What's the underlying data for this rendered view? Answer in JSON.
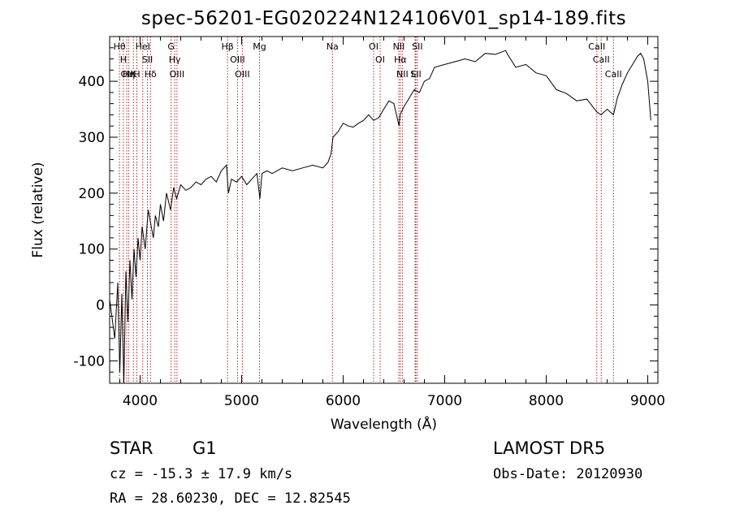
{
  "header": {
    "title": "spec-56201-EG020224N124106V01_sp14-189.fits"
  },
  "footer": {
    "object_class": "STAR",
    "subclass": "G1",
    "survey": "LAMOST DR5",
    "cz": "cz = -15.3 ± 17.9 km/s",
    "obs_date": "Obs-Date: 20120930",
    "radec": "RA =  28.60230, DEC =  12.82545"
  },
  "chart_data": {
    "type": "line",
    "title": "spec-56201-EG020224N124106V01_sp14-189.fits",
    "xlabel": "Wavelength (Å)",
    "ylabel": "Flux (relative)",
    "xlim": [
      3700,
      9100
    ],
    "ylim": [
      -140,
      480
    ],
    "xticks": [
      4000,
      5000,
      6000,
      7000,
      8000,
      9000
    ],
    "yticks": [
      -100,
      0,
      100,
      200,
      300,
      400
    ],
    "grid": false,
    "line_color": "#000000",
    "marker_color": "#b22222",
    "series": [
      {
        "x": [
          3700,
          3750,
          3780,
          3800,
          3820,
          3840,
          3860,
          3880,
          3900,
          3920,
          3940,
          3960,
          3980,
          4000,
          4020,
          4050,
          4080,
          4100,
          4130,
          4150,
          4180,
          4200,
          4230,
          4260,
          4300,
          4330,
          4360,
          4400,
          4450,
          4500,
          4550,
          4600,
          4650,
          4700,
          4750,
          4800,
          4850,
          4870,
          4900,
          4950,
          5000,
          5050,
          5100,
          5150,
          5180,
          5200,
          5250,
          5300,
          5400,
          5500,
          5600,
          5700,
          5800,
          5850,
          5880,
          5900,
          5950,
          6000,
          6050,
          6100,
          6150,
          6200,
          6250,
          6300,
          6350,
          6400,
          6450,
          6500,
          6550,
          6560,
          6600,
          6650,
          6700,
          6750,
          6800,
          6850,
          6900,
          7000,
          7100,
          7200,
          7300,
          7400,
          7500,
          7600,
          7620,
          7700,
          7800,
          7900,
          8000,
          8100,
          8200,
          8300,
          8400,
          8500,
          8540,
          8600,
          8662,
          8700,
          8750,
          8800,
          8850,
          8900,
          8930,
          8960,
          9000,
          9030
        ],
        "y": [
          10,
          -60,
          40,
          -120,
          20,
          -140,
          60,
          -30,
          80,
          10,
          100,
          50,
          120,
          80,
          140,
          100,
          170,
          150,
          120,
          160,
          140,
          180,
          150,
          200,
          170,
          210,
          190,
          215,
          205,
          210,
          220,
          215,
          225,
          230,
          220,
          240,
          250,
          200,
          225,
          220,
          230,
          215,
          225,
          235,
          190,
          235,
          240,
          235,
          245,
          240,
          245,
          250,
          245,
          255,
          270,
          300,
          310,
          325,
          320,
          318,
          325,
          330,
          340,
          330,
          335,
          350,
          365,
          360,
          320,
          340,
          355,
          370,
          385,
          380,
          400,
          405,
          425,
          430,
          435,
          440,
          435,
          450,
          448,
          455,
          448,
          425,
          430,
          415,
          410,
          385,
          378,
          365,
          368,
          345,
          340,
          350,
          340,
          370,
          395,
          415,
          430,
          445,
          450,
          440,
          400,
          330
        ]
      }
    ],
    "lines": [
      {
        "wave": 3797,
        "label": "Hθ"
      },
      {
        "wave": 3835,
        "label": "H"
      },
      {
        "wave": 3869,
        "label": "OII"
      },
      {
        "wave": 3889,
        "label": "Hη"
      },
      {
        "wave": 3934,
        "label": "K"
      },
      {
        "wave": 3968,
        "label": "H"
      },
      {
        "wave": 4026,
        "label": "HeI"
      },
      {
        "wave": 4072,
        "label": "SII"
      },
      {
        "wave": 4102,
        "label": "Hδ"
      },
      {
        "wave": 4305,
        "label": "G"
      },
      {
        "wave": 4341,
        "label": "Hγ"
      },
      {
        "wave": 4363,
        "label": "OIII"
      },
      {
        "wave": 4861,
        "label": "Hβ"
      },
      {
        "wave": 4959,
        "label": "OIII"
      },
      {
        "wave": 5007,
        "label": "OIII"
      },
      {
        "wave": 5176,
        "label": "Mg"
      },
      {
        "wave": 5894,
        "label": "Na"
      },
      {
        "wave": 6300,
        "label": "OI"
      },
      {
        "wave": 6364,
        "label": "OI"
      },
      {
        "wave": 6548,
        "label": "NII"
      },
      {
        "wave": 6563,
        "label": "Hα"
      },
      {
        "wave": 6583,
        "label": "NII"
      },
      {
        "wave": 6708,
        "label": "Li"
      },
      {
        "wave": 6716,
        "label": "SII"
      },
      {
        "wave": 6731,
        "label": "SII"
      },
      {
        "wave": 8498,
        "label": "CaII"
      },
      {
        "wave": 8542,
        "label": "CaII"
      },
      {
        "wave": 8662,
        "label": "CaII"
      }
    ]
  }
}
